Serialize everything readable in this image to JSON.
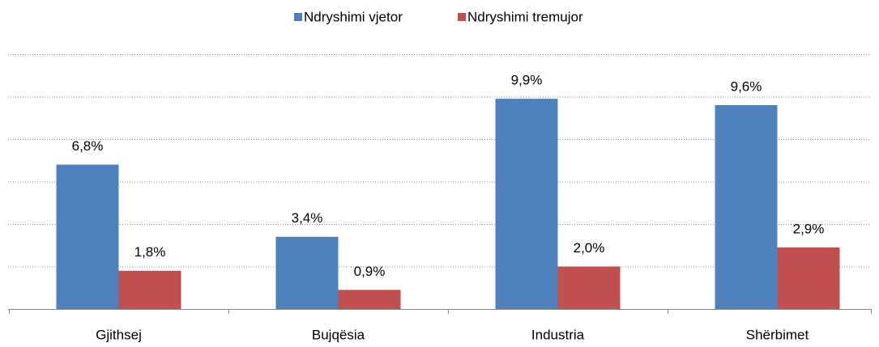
{
  "chart_data": {
    "type": "bar",
    "categories": [
      "Gjithsej",
      "Bujqësia",
      "Industria",
      "Shërbimet"
    ],
    "series": [
      {
        "name": "Ndryshimi vjetor",
        "color": "#4f81bd",
        "values": [
          6.8,
          3.4,
          9.9,
          9.6
        ],
        "value_labels": [
          "6,8%",
          "3,4%",
          "9,9%",
          "9,6%"
        ]
      },
      {
        "name": "Ndryshimi tremujor",
        "color": "#c0504d",
        "values": [
          1.8,
          0.9,
          2.0,
          2.9
        ],
        "value_labels": [
          "1,8%",
          "0,9%",
          "2,0%",
          "2,9%"
        ]
      }
    ],
    "ylim": [
      0,
      12
    ],
    "yticks": [
      2,
      4,
      6,
      8,
      10,
      12
    ],
    "grid": true,
    "legend": "top"
  }
}
